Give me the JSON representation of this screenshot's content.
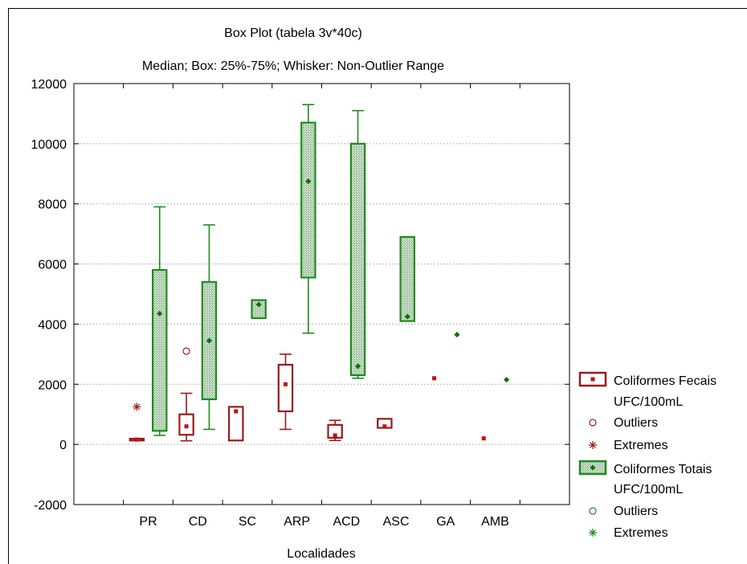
{
  "chart_data": {
    "type": "box",
    "title": "Box Plot (tabela 3v*40c)",
    "subtitle": "Median; Box: 25%-75%; Whisker: Non-Outlier Range",
    "xlabel": "Localidades",
    "ylabel": "",
    "ylim": [
      -2000,
      12000
    ],
    "yticks": [
      "-2000",
      "0",
      "2000",
      "4000",
      "6000",
      "8000",
      "10000",
      "12000"
    ],
    "grid": true,
    "legend_position": "right",
    "categories": [
      "PR",
      "CD",
      "SC",
      "ARP",
      "ACD",
      "ASC",
      "GA",
      "AMB"
    ],
    "series": [
      {
        "name": "Coliformes Fecais UFC/100mL",
        "color": "#9b1b1b",
        "boxes": [
          {
            "category": "PR",
            "q1": 130,
            "median": 160,
            "q3": 190,
            "whisker_low": 130,
            "whisker_high": 190
          },
          {
            "category": "CD",
            "q1": 320,
            "median": 600,
            "q3": 1000,
            "whisker_low": 120,
            "whisker_high": 1700
          },
          {
            "category": "SC",
            "q1": 130,
            "median": 1100,
            "q3": 1250,
            "whisker_low": 130,
            "whisker_high": 1250
          },
          {
            "category": "ARP",
            "q1": 1100,
            "median": 2000,
            "q3": 2650,
            "whisker_low": 500,
            "whisker_high": 3000
          },
          {
            "category": "ACD",
            "q1": 220,
            "median": 300,
            "q3": 650,
            "whisker_low": 130,
            "whisker_high": 800
          },
          {
            "category": "ASC",
            "q1": 550,
            "median": 600,
            "q3": 850,
            "whisker_low": 550,
            "whisker_high": 850
          },
          {
            "category": "GA",
            "q1": 2200,
            "median": 2200,
            "q3": 2200,
            "whisker_low": 2200,
            "whisker_high": 2200
          },
          {
            "category": "AMB",
            "q1": 200,
            "median": 200,
            "q3": 200,
            "whisker_low": 200,
            "whisker_high": 200
          }
        ],
        "outliers": [
          {
            "category": "CD",
            "value": 3100
          }
        ],
        "extremes": [
          {
            "category": "PR",
            "value": 1250
          }
        ]
      },
      {
        "name": "Coliformes Totais UFC/100mL",
        "color": "#1f8a1f",
        "boxes": [
          {
            "category": "PR",
            "q1": 450,
            "median": 4350,
            "q3": 5800,
            "whisker_low": 300,
            "whisker_high": 7900
          },
          {
            "category": "CD",
            "q1": 1500,
            "median": 3450,
            "q3": 5400,
            "whisker_low": 500,
            "whisker_high": 7300
          },
          {
            "category": "SC",
            "q1": 4200,
            "median": 4650,
            "q3": 4800,
            "whisker_low": 4200,
            "whisker_high": 4800
          },
          {
            "category": "ARP",
            "q1": 5550,
            "median": 8750,
            "q3": 10700,
            "whisker_low": 3700,
            "whisker_high": 11300
          },
          {
            "category": "ACD",
            "q1": 2300,
            "median": 2600,
            "q3": 10000,
            "whisker_low": 2200,
            "whisker_high": 11100
          },
          {
            "category": "ASC",
            "q1": 4100,
            "median": 4250,
            "q3": 6900,
            "whisker_low": 4100,
            "whisker_high": 6900
          },
          {
            "category": "GA",
            "q1": 3650,
            "median": 3650,
            "q3": 3650,
            "whisker_low": 3650,
            "whisker_high": 3650
          },
          {
            "category": "AMB",
            "q1": 2150,
            "median": 2150,
            "q3": 2150,
            "whisker_low": 2150,
            "whisker_high": 2150
          }
        ],
        "outliers": [],
        "extremes": []
      }
    ],
    "legend": {
      "fecais_line1": "Coliformes Fecais",
      "fecais_line2": "UFC/100mL",
      "fecais_outliers": "Outliers",
      "fecais_extremes": "Extremes",
      "totais_line1": "Coliformes Totais",
      "totais_line2": "UFC/100mL",
      "totais_outliers": "Outliers",
      "totais_extremes": "Extremes"
    }
  }
}
